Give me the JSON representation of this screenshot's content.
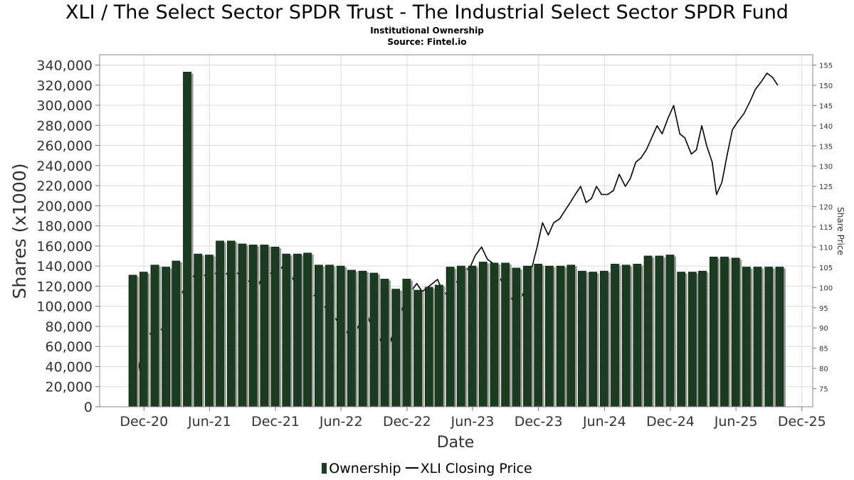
{
  "chart_data": {
    "type": "bar",
    "title": "XLI / The Select Sector SPDR Trust - The Industrial Select Sector SPDR Fund",
    "subtitle": "Institutional Ownership",
    "source": "Source: Fintel.io",
    "xlabel": "Date",
    "ylabel": "Shares (x1000)",
    "ylabel_right": "Share Price",
    "ylim": [
      0,
      340000
    ],
    "ylim_right": [
      70,
      155
    ],
    "y_ticks": [
      "0",
      "20,000",
      "40,000",
      "60,000",
      "80,000",
      "100,000",
      "120,000",
      "140,000",
      "160,000",
      "180,000",
      "200,000",
      "220,000",
      "240,000",
      "260,000",
      "280,000",
      "300,000",
      "320,000",
      "340,000"
    ],
    "y_ticks_right": [
      "75",
      "80",
      "85",
      "90",
      "95",
      "100",
      "105",
      "110",
      "115",
      "120",
      "125",
      "130",
      "135",
      "140",
      "145",
      "150",
      "155"
    ],
    "x_ticks": [
      "Dec-20",
      "Jun-21",
      "Dec-21",
      "Jun-22",
      "Dec-22",
      "Jun-23",
      "Dec-23",
      "Jun-24",
      "Dec-24",
      "Jun-25",
      "Dec-25"
    ],
    "x_tick_dates": [
      "2020-12-01",
      "2021-06-01",
      "2021-12-01",
      "2022-06-01",
      "2022-12-01",
      "2023-06-01",
      "2023-12-01",
      "2024-06-01",
      "2024-12-01",
      "2025-06-01",
      "2025-12-01"
    ],
    "grid": true,
    "legend_position": "bottom",
    "series": [
      {
        "name": "Ownership",
        "type": "bar",
        "color": "#1b3d1f",
        "x": [
          "2020-10-31",
          "2020-11-30",
          "2020-12-31",
          "2021-01-31",
          "2021-02-28",
          "2021-03-31",
          "2021-04-30",
          "2021-05-31",
          "2021-06-30",
          "2021-07-31",
          "2021-08-31",
          "2021-09-30",
          "2021-10-31",
          "2021-11-30",
          "2021-12-31",
          "2022-01-31",
          "2022-02-28",
          "2022-03-31",
          "2022-04-30",
          "2022-05-31",
          "2022-06-30",
          "2022-07-31",
          "2022-08-31",
          "2022-09-30",
          "2022-10-31",
          "2022-11-30",
          "2022-12-31",
          "2023-01-31",
          "2023-02-28",
          "2023-03-31",
          "2023-04-30",
          "2023-05-31",
          "2023-06-30",
          "2023-07-31",
          "2023-08-31",
          "2023-09-30",
          "2023-10-31",
          "2023-11-30",
          "2023-12-31",
          "2024-01-31",
          "2024-02-29",
          "2024-03-31",
          "2024-04-30",
          "2024-05-31",
          "2024-06-30",
          "2024-07-31",
          "2024-08-31",
          "2024-09-30",
          "2024-10-31",
          "2024-11-30",
          "2024-12-31",
          "2025-01-31",
          "2025-02-28",
          "2025-03-31",
          "2025-04-30",
          "2025-05-31",
          "2025-06-30",
          "2025-07-31",
          "2025-08-31",
          "2025-09-30"
        ],
        "values": [
          131000,
          134000,
          141000,
          139000,
          145000,
          333000,
          152000,
          151000,
          165000,
          165000,
          162000,
          161000,
          161000,
          159000,
          152000,
          152000,
          153000,
          141000,
          141000,
          140000,
          136000,
          135000,
          133000,
          127000,
          117000,
          127000,
          116000,
          119000,
          121000,
          139000,
          140000,
          140000,
          144000,
          143000,
          143000,
          138000,
          140000,
          142000,
          140000,
          140000,
          141000,
          135000,
          134000,
          135000,
          142000,
          141000,
          142000,
          150000,
          150000,
          151000,
          134000,
          134000,
          135000,
          149000,
          149000,
          148000,
          139000,
          139000,
          139000,
          139000
        ]
      },
      {
        "name": "XLI Closing Price",
        "type": "line",
        "color": "#000000",
        "x": [
          "2020-11-10",
          "2020-11-25",
          "2020-12-10",
          "2020-12-28",
          "2021-01-12",
          "2021-01-28",
          "2021-02-12",
          "2021-02-26",
          "2021-03-12",
          "2021-03-26",
          "2021-04-12",
          "2021-04-27",
          "2021-05-10",
          "2021-05-26",
          "2021-06-10",
          "2021-06-25",
          "2021-07-12",
          "2021-07-27",
          "2021-08-10",
          "2021-08-26",
          "2021-09-10",
          "2021-09-27",
          "2021-10-12",
          "2021-10-27",
          "2021-11-10",
          "2021-11-26",
          "2021-12-10",
          "2021-12-28",
          "2022-01-12",
          "2022-01-28",
          "2022-02-11",
          "2022-02-25",
          "2022-03-10",
          "2022-03-25",
          "2022-04-11",
          "2022-04-27",
          "2022-05-12",
          "2022-05-26",
          "2022-06-10",
          "2022-06-24",
          "2022-07-12",
          "2022-07-27",
          "2022-08-10",
          "2022-08-26",
          "2022-09-12",
          "2022-09-30",
          "2022-10-14",
          "2022-10-28",
          "2022-11-10",
          "2022-11-28",
          "2022-12-12",
          "2022-12-28",
          "2023-01-12",
          "2023-01-27",
          "2023-02-10",
          "2023-02-24",
          "2023-03-10",
          "2023-03-27",
          "2023-04-12",
          "2023-04-27",
          "2023-05-10",
          "2023-05-25",
          "2023-06-09",
          "2023-06-26",
          "2023-07-12",
          "2023-07-27",
          "2023-08-10",
          "2023-08-25",
          "2023-09-12",
          "2023-09-27",
          "2023-10-12",
          "2023-10-27",
          "2023-11-10",
          "2023-11-27",
          "2023-12-12",
          "2023-12-28",
          "2024-01-12",
          "2024-01-29",
          "2024-02-12",
          "2024-02-27",
          "2024-03-12",
          "2024-03-27",
          "2024-04-11",
          "2024-04-26",
          "2024-05-10",
          "2024-05-24",
          "2024-06-10",
          "2024-06-26",
          "2024-07-12",
          "2024-07-29",
          "2024-08-12",
          "2024-08-27",
          "2024-09-10",
          "2024-09-25",
          "2024-10-10",
          "2024-10-25",
          "2024-11-08",
          "2024-11-25",
          "2024-12-10",
          "2024-12-27",
          "2025-01-10",
          "2025-01-28",
          "2025-02-11",
          "2025-02-26",
          "2025-03-12",
          "2025-03-27",
          "2025-04-08",
          "2025-04-23",
          "2025-05-08",
          "2025-05-22",
          "2025-06-06",
          "2025-06-23",
          "2025-07-10",
          "2025-07-25",
          "2025-08-11",
          "2025-08-26",
          "2025-09-10",
          "2025-09-25"
        ],
        "values": [
          77,
          84,
          89,
          88,
          90,
          89,
          92,
          95,
          98,
          100,
          102,
          104,
          103,
          103,
          104,
          103,
          103,
          104,
          104,
          103,
          102,
          101,
          100,
          103,
          104,
          103,
          104,
          106,
          103,
          101,
          100,
          99,
          98,
          98,
          96,
          94,
          93,
          91,
          90,
          88,
          89,
          92,
          94,
          90,
          88,
          85,
          86,
          90,
          93,
          97,
          99,
          101,
          99,
          100,
          101,
          102,
          99,
          98,
          101,
          102,
          104,
          105,
          108,
          110,
          107,
          106,
          103,
          101,
          98,
          96,
          97,
          100,
          104,
          110,
          116,
          113,
          116,
          117,
          119,
          121,
          123,
          125,
          121,
          122,
          125,
          123,
          123,
          124,
          128,
          125,
          127,
          131,
          132,
          134,
          137,
          140,
          138,
          142,
          145,
          138,
          137,
          133,
          134,
          140,
          135,
          131,
          123,
          126,
          133,
          139,
          141,
          143,
          146,
          149,
          151,
          153,
          152,
          150
        ]
      }
    ]
  }
}
